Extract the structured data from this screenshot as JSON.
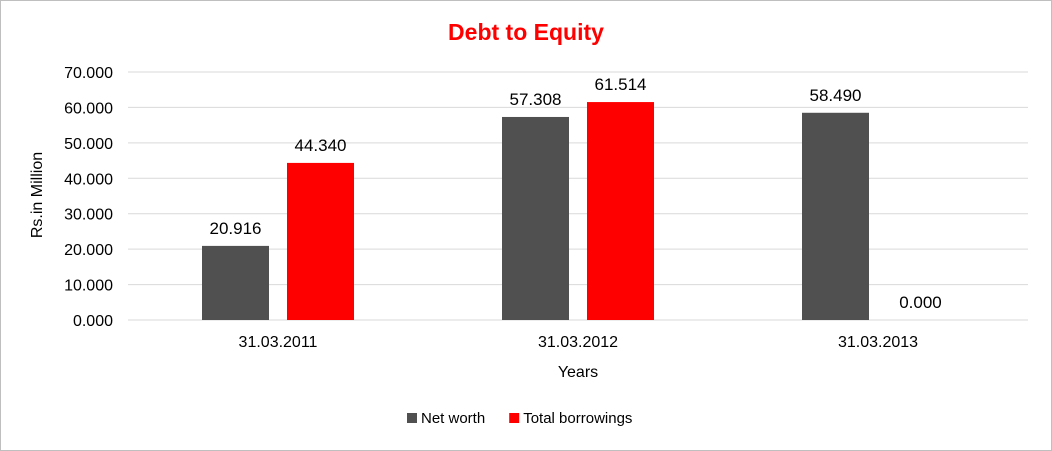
{
  "chart_data": {
    "type": "bar",
    "title": "Debt to Equity",
    "title_color": "#ff0000",
    "xlabel": "Years",
    "ylabel": "Rs.in Million",
    "categories": [
      "31.03.2011",
      "31.03.2012",
      "31.03.2013"
    ],
    "series": [
      {
        "name": "Net worth",
        "color": "#505050",
        "values": [
          20.916,
          57.308,
          58.49
        ],
        "labels": [
          "20.916",
          "57.308",
          "58.490"
        ]
      },
      {
        "name": "Total borrowings",
        "color": "#ff0000",
        "values": [
          44.34,
          61.514,
          0.0
        ],
        "labels": [
          "44.340",
          "61.514",
          "0.000"
        ]
      }
    ],
    "ylim": [
      0,
      70
    ],
    "yticks": [
      "0.000",
      "10.000",
      "20.000",
      "30.000",
      "40.000",
      "50.000",
      "60.000",
      "70.000"
    ],
    "grid": true,
    "legend_position": "bottom"
  }
}
